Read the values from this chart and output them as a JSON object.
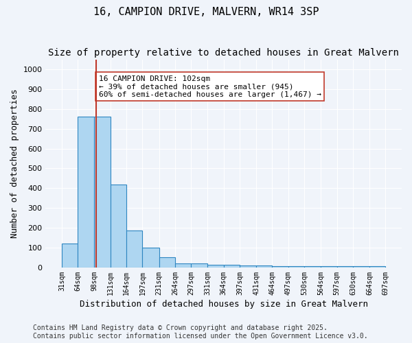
{
  "title": "16, CAMPION DRIVE, MALVERN, WR14 3SP",
  "subtitle": "Size of property relative to detached houses in Great Malvern",
  "xlabel": "Distribution of detached houses by size in Great Malvern",
  "ylabel": "Number of detached properties",
  "bar_values": [
    120,
    760,
    760,
    420,
    185,
    100,
    50,
    20,
    20,
    15,
    15,
    10,
    10,
    5,
    5,
    5,
    5,
    5,
    5,
    5
  ],
  "bin_edges": [
    31,
    64,
    98,
    131,
    164,
    197,
    231,
    264,
    297,
    331,
    364,
    397,
    431,
    464,
    497,
    530,
    564,
    597,
    630,
    664,
    697
  ],
  "bin_labels": [
    "31sqm",
    "64sqm",
    "98sqm",
    "131sqm",
    "164sqm",
    "197sqm",
    "231sqm",
    "264sqm",
    "297sqm",
    "331sqm",
    "364sqm",
    "397sqm",
    "431sqm",
    "464sqm",
    "497sqm",
    "530sqm",
    "564sqm",
    "597sqm",
    "630sqm",
    "664sqm",
    "697sqm"
  ],
  "bar_color": "#AED6F1",
  "bar_edge_color": "#2E86C1",
  "vline_x": 102,
  "vline_color": "#c0392b",
  "annotation_text": "16 CAMPION DRIVE: 102sqm\n← 39% of detached houses are smaller (945)\n60% of semi-detached houses are larger (1,467) →",
  "annotation_box_color": "white",
  "annotation_box_edge_color": "#c0392b",
  "ylim": [
    0,
    1050
  ],
  "yticks": [
    0,
    100,
    200,
    300,
    400,
    500,
    600,
    700,
    800,
    900,
    1000
  ],
  "background_color": "#f0f4fa",
  "footer_text": "Contains HM Land Registry data © Crown copyright and database right 2025.\nContains public sector information licensed under the Open Government Licence v3.0.",
  "title_fontsize": 11,
  "subtitle_fontsize": 10,
  "annotation_fontsize": 8,
  "footer_fontsize": 7
}
